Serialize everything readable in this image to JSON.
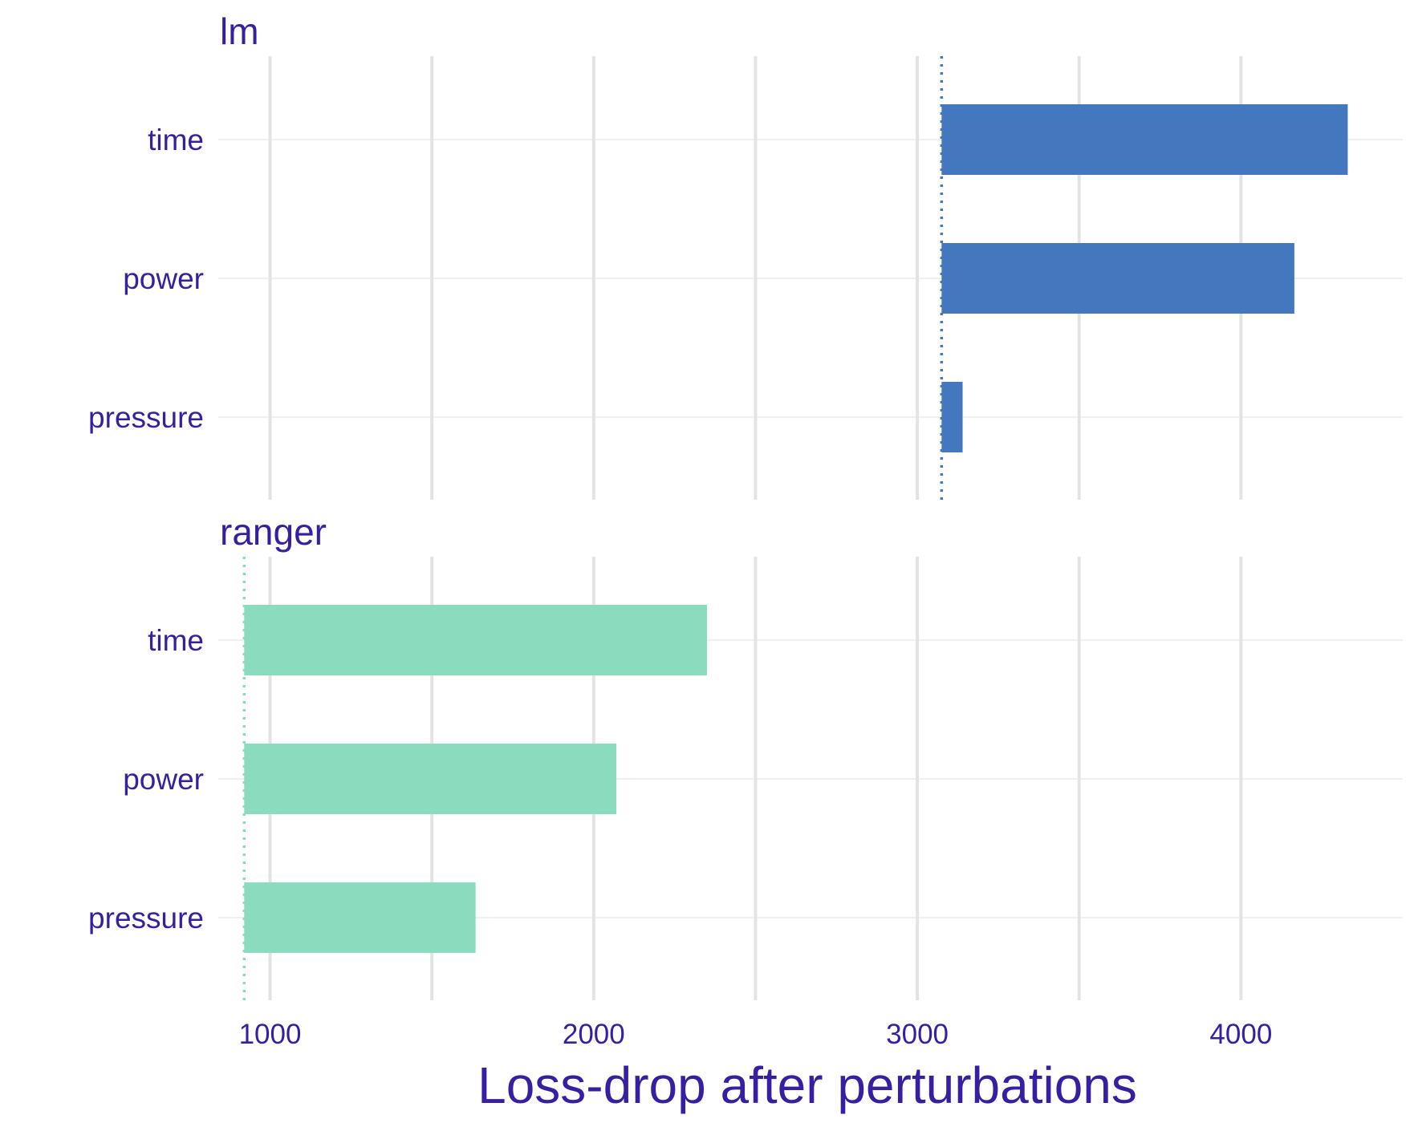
{
  "chart_data": {
    "type": "bar",
    "orientation": "horizontal",
    "xlabel": "Loss-drop after perturbations",
    "xlim": [
      840,
      4500
    ],
    "x_ticks": [
      1000,
      2000,
      3000,
      4000
    ],
    "x_minor_ticks": [
      1500,
      2500,
      3500
    ],
    "grid": true,
    "categories": [
      "time",
      "power",
      "pressure"
    ],
    "panels": [
      {
        "name": "lm",
        "color": "#4378bf",
        "baseline": 3075,
        "values": [
          4330,
          4165,
          3140
        ]
      },
      {
        "name": "ranger",
        "color": "#8bdcbe",
        "baseline": 920,
        "values": [
          2350,
          2070,
          1635
        ]
      }
    ]
  }
}
